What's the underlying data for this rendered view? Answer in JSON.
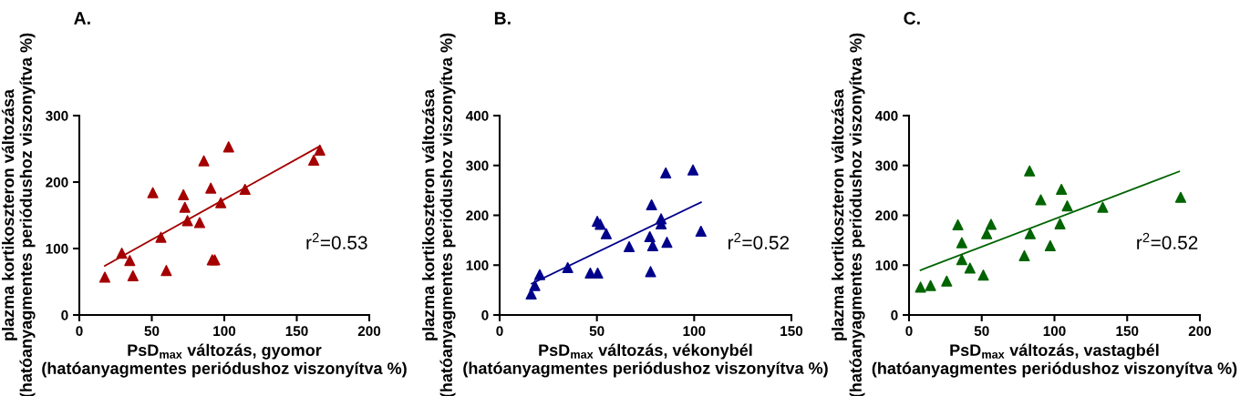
{
  "chart_data": [
    {
      "type": "scatter",
      "title": "A.",
      "xlabel": "PsD$_{max}$ változás, gyomor\n(hatóanyagmentes periódushoz viszonyítva %)",
      "ylabel": "plazma kortikoszteron változása\n(hatóanyagmentes periódushoz viszonyítva %)",
      "xlim": [
        0,
        200
      ],
      "xticks": [
        0,
        50,
        100,
        150,
        200
      ],
      "ylim": [
        0,
        300
      ],
      "yticks": [
        0,
        100,
        200,
        300
      ],
      "grid": false,
      "legend": false,
      "marker": "triangle",
      "annotations": [
        "r$^{2}$=0.53"
      ],
      "series": [
        {
          "color": "#a50000",
          "x": [
            17.6,
            29.3,
            34.8,
            37,
            50.7,
            56.3,
            60,
            71.8,
            72.8,
            74.6,
            83,
            85.9,
            90.7,
            91.7,
            93.4,
            97.6,
            103,
            114.3,
            161.7,
            165.9
          ],
          "values": [
            57,
            93,
            82,
            59,
            184,
            117,
            67,
            181,
            162,
            142,
            139,
            232,
            191,
            83,
            83,
            169,
            253,
            189,
            233,
            248
          ]
        },
        {
          "type": "line",
          "color": "#a50000",
          "marker": "none",
          "x": [
            17.6,
            165.9
          ],
          "values": [
            74,
            254
          ]
        }
      ]
    },
    {
      "type": "scatter",
      "title": "B.",
      "xlabel": "PsD$_{max}$ változás, vékonybél\n(hatóanyagmentes periódushoz viszonyítva %)",
      "ylabel": "plazma kortikoszteron változása\n(hatóanyagmentes periódushoz viszonyítva %)",
      "xlim": [
        0,
        150
      ],
      "xticks": [
        0,
        50,
        100,
        150
      ],
      "ylim": [
        0,
        400
      ],
      "yticks": [
        0,
        100,
        200,
        300,
        400
      ],
      "grid": false,
      "legend": false,
      "marker": "triangle",
      "annotations": [
        "r$^{2}$=0.52"
      ],
      "series": [
        {
          "color": "#00008b",
          "x": [
            16.2,
            18.1,
            20.6,
            35,
            46.6,
            50.4,
            50.2,
            51.7,
            54.8,
            66.6,
            77.2,
            77.6,
            78.1,
            78.7,
            83,
            83,
            85.4,
            86,
            99.4,
            103.5
          ],
          "values": [
            42,
            59,
            81,
            95,
            84,
            84,
            188,
            182,
            163,
            137,
            157,
            87,
            221,
            139,
            193,
            183,
            285,
            146,
            291,
            168
          ]
        },
        {
          "type": "line",
          "color": "#00008b",
          "marker": "none",
          "x": [
            16.5,
            103.5
          ],
          "values": [
            63,
            226
          ]
        }
      ]
    },
    {
      "type": "scatter",
      "title": "C.",
      "xlabel": "PsD$_{max}$ változás, vastagbél\n(hatóanyagmentes periódushoz viszonyítva %)",
      "ylabel": "plazma kortikoszteron változása\n(hatóanyagmentes periódushoz viszonyítva %)",
      "xlim": [
        0,
        200
      ],
      "xticks": [
        0,
        50,
        100,
        150,
        200
      ],
      "ylim": [
        0,
        400
      ],
      "yticks": [
        0,
        100,
        200,
        300,
        400
      ],
      "grid": false,
      "legend": false,
      "marker": "triangle",
      "annotations": [
        "r$^{2}$=0.52"
      ],
      "series": [
        {
          "color": "#006400",
          "x": [
            7.9,
            14.8,
            25.9,
            33.6,
            36.3,
            36.3,
            41.9,
            51.1,
            53.4,
            56.4,
            79.3,
            82.9,
            83.3,
            90.6,
            97.1,
            103.8,
            104.8,
            108.8,
            133.2,
            186.8
          ],
          "values": [
            56,
            59,
            68,
            181,
            145,
            111,
            94,
            80,
            163,
            182,
            119,
            289,
            163,
            231,
            139,
            183,
            252,
            219,
            216,
            236
          ]
        },
        {
          "type": "line",
          "color": "#006400",
          "marker": "none",
          "x": [
            7.9,
            185.8
          ],
          "values": [
            90,
            288
          ]
        }
      ]
    }
  ]
}
